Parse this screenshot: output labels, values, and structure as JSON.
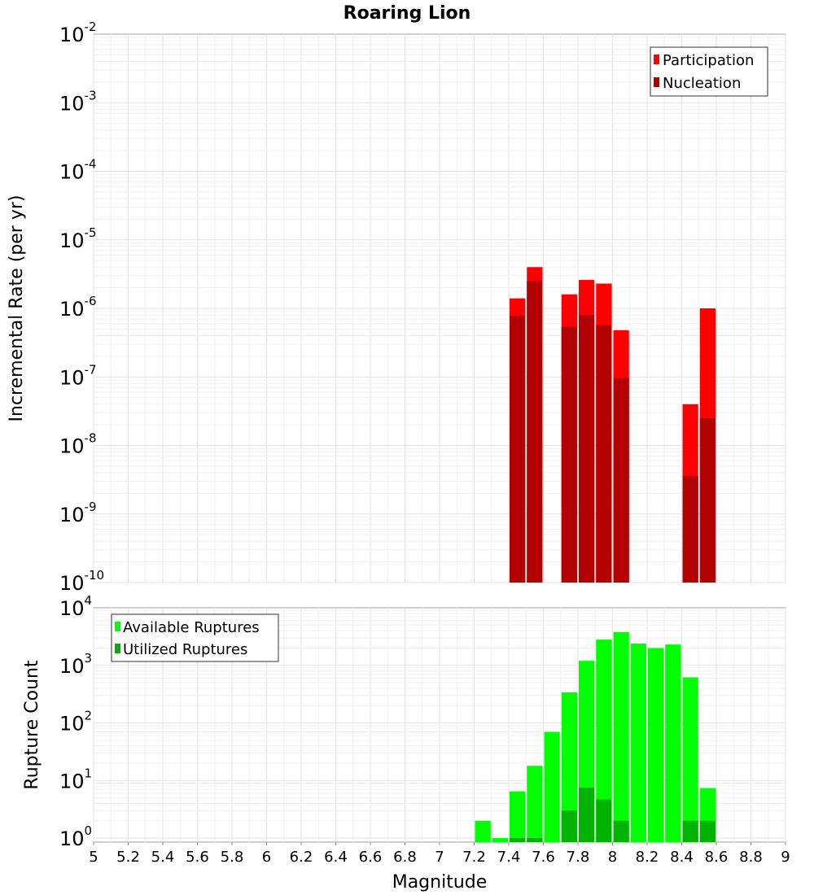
{
  "title": "Roaring Lion",
  "colors": {
    "participation": "#ff0000",
    "nucleation": "#b30000",
    "available": "#00ff00",
    "utilized": "#00b300"
  },
  "chart_data": [
    {
      "type": "bar",
      "name": "rate-plot",
      "ylabel": "Incremental Rate (per yr)",
      "yscale": "log",
      "ylim_exponents": [
        -10,
        -2
      ],
      "xlim": [
        5,
        9
      ],
      "bin_width": 0.1,
      "legend": {
        "position": "top-right",
        "entries": [
          "Participation",
          "Nucleation"
        ]
      },
      "series": [
        {
          "name": "Participation",
          "points": [
            [
              7.45,
              1.4e-06
            ],
            [
              7.55,
              4e-06
            ],
            [
              7.75,
              1.6e-06
            ],
            [
              7.85,
              2.6e-06
            ],
            [
              7.95,
              2.3e-06
            ],
            [
              8.05,
              4.8e-07
            ],
            [
              8.45,
              4e-08
            ],
            [
              8.55,
              1e-06
            ]
          ]
        },
        {
          "name": "Nucleation",
          "points": [
            [
              7.45,
              7.8e-07
            ],
            [
              7.55,
              2.5e-06
            ],
            [
              7.75,
              5.4e-07
            ],
            [
              7.85,
              8e-07
            ],
            [
              7.95,
              5.7e-07
            ],
            [
              8.05,
              9.6e-08
            ],
            [
              8.45,
              3.6e-09
            ],
            [
              8.55,
              2.5e-08
            ]
          ]
        }
      ]
    },
    {
      "type": "bar",
      "name": "count-plot",
      "ylabel": "Rupture Count",
      "xlabel": "Magnitude",
      "yscale": "log",
      "ylim_exponents": [
        -0.07,
        4
      ],
      "xlim": [
        5,
        9
      ],
      "bin_width": 0.1,
      "xticks": [
        "5",
        "5.2",
        "5.4",
        "5.6",
        "5.8",
        "6",
        "6.2",
        "6.4",
        "6.6",
        "6.8",
        "7",
        "7.2",
        "7.4",
        "7.6",
        "7.8",
        "8",
        "8.2",
        "8.4",
        "8.6",
        "8.8",
        "9"
      ],
      "legend": {
        "position": "top-left",
        "entries": [
          "Available Ruptures",
          "Utilized Ruptures"
        ]
      },
      "series": [
        {
          "name": "Available Ruptures",
          "points": [
            [
              7.25,
              2
            ],
            [
              7.35,
              1
            ],
            [
              7.45,
              6.5
            ],
            [
              7.55,
              18
            ],
            [
              7.65,
              70
            ],
            [
              7.75,
              340
            ],
            [
              7.85,
              1200
            ],
            [
              7.95,
              2800
            ],
            [
              8.05,
              3800
            ],
            [
              8.15,
              2400
            ],
            [
              8.25,
              2000
            ],
            [
              8.35,
              2300
            ],
            [
              8.45,
              620
            ],
            [
              8.55,
              7.4
            ]
          ]
        },
        {
          "name": "Utilized Ruptures",
          "points": [
            [
              7.45,
              1
            ],
            [
              7.55,
              1
            ],
            [
              7.75,
              3
            ],
            [
              7.85,
              7.5
            ],
            [
              7.95,
              4.7
            ],
            [
              8.05,
              2
            ],
            [
              8.45,
              2
            ],
            [
              8.55,
              2
            ]
          ]
        }
      ]
    }
  ]
}
